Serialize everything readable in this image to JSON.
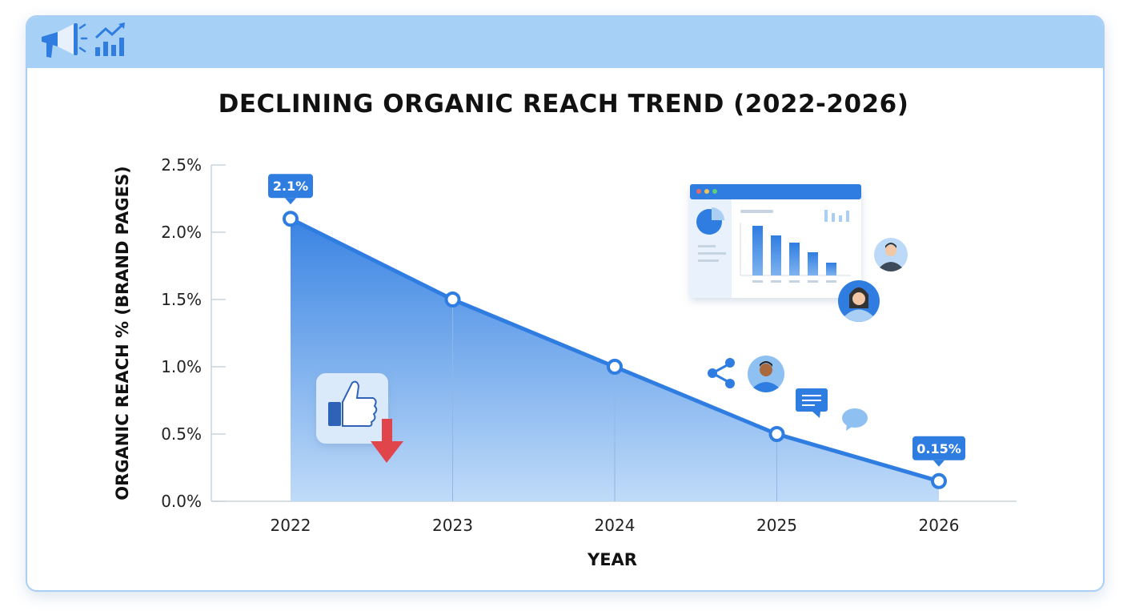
{
  "header": {
    "icons": [
      "megaphone-icon",
      "growth-chart-icon"
    ]
  },
  "colors": {
    "accent": "#2f7de1",
    "header_bg": "#a7d0f7",
    "down_arrow": "#e0454c"
  },
  "chart_data": {
    "type": "area",
    "title": "DECLINING ORGANIC REACH TREND (2022-2026)",
    "xlabel": "YEAR",
    "ylabel": "ORGANIC REACH % (BRAND PAGES)",
    "x": [
      "2022",
      "2023",
      "2024",
      "2025",
      "2026"
    ],
    "values": [
      2.1,
      1.5,
      1.0,
      0.5,
      0.15
    ],
    "ylim": [
      0,
      2.5
    ],
    "yticks": [
      0,
      0.5,
      1.0,
      1.5,
      2.0,
      2.5
    ],
    "ytick_labels": [
      "0.0%",
      "0.5%",
      "1.0%",
      "1.5%",
      "2.0%",
      "2.5%"
    ],
    "annotations": [
      {
        "index": 0,
        "text": "2.1%"
      },
      {
        "index": 4,
        "text": "0.15%"
      }
    ],
    "grid": false
  },
  "decorations": [
    "thumbs-up-down-icon",
    "dashboard-window-illustration",
    "avatar-icon",
    "share-icon",
    "chat-bubble-icon"
  ]
}
